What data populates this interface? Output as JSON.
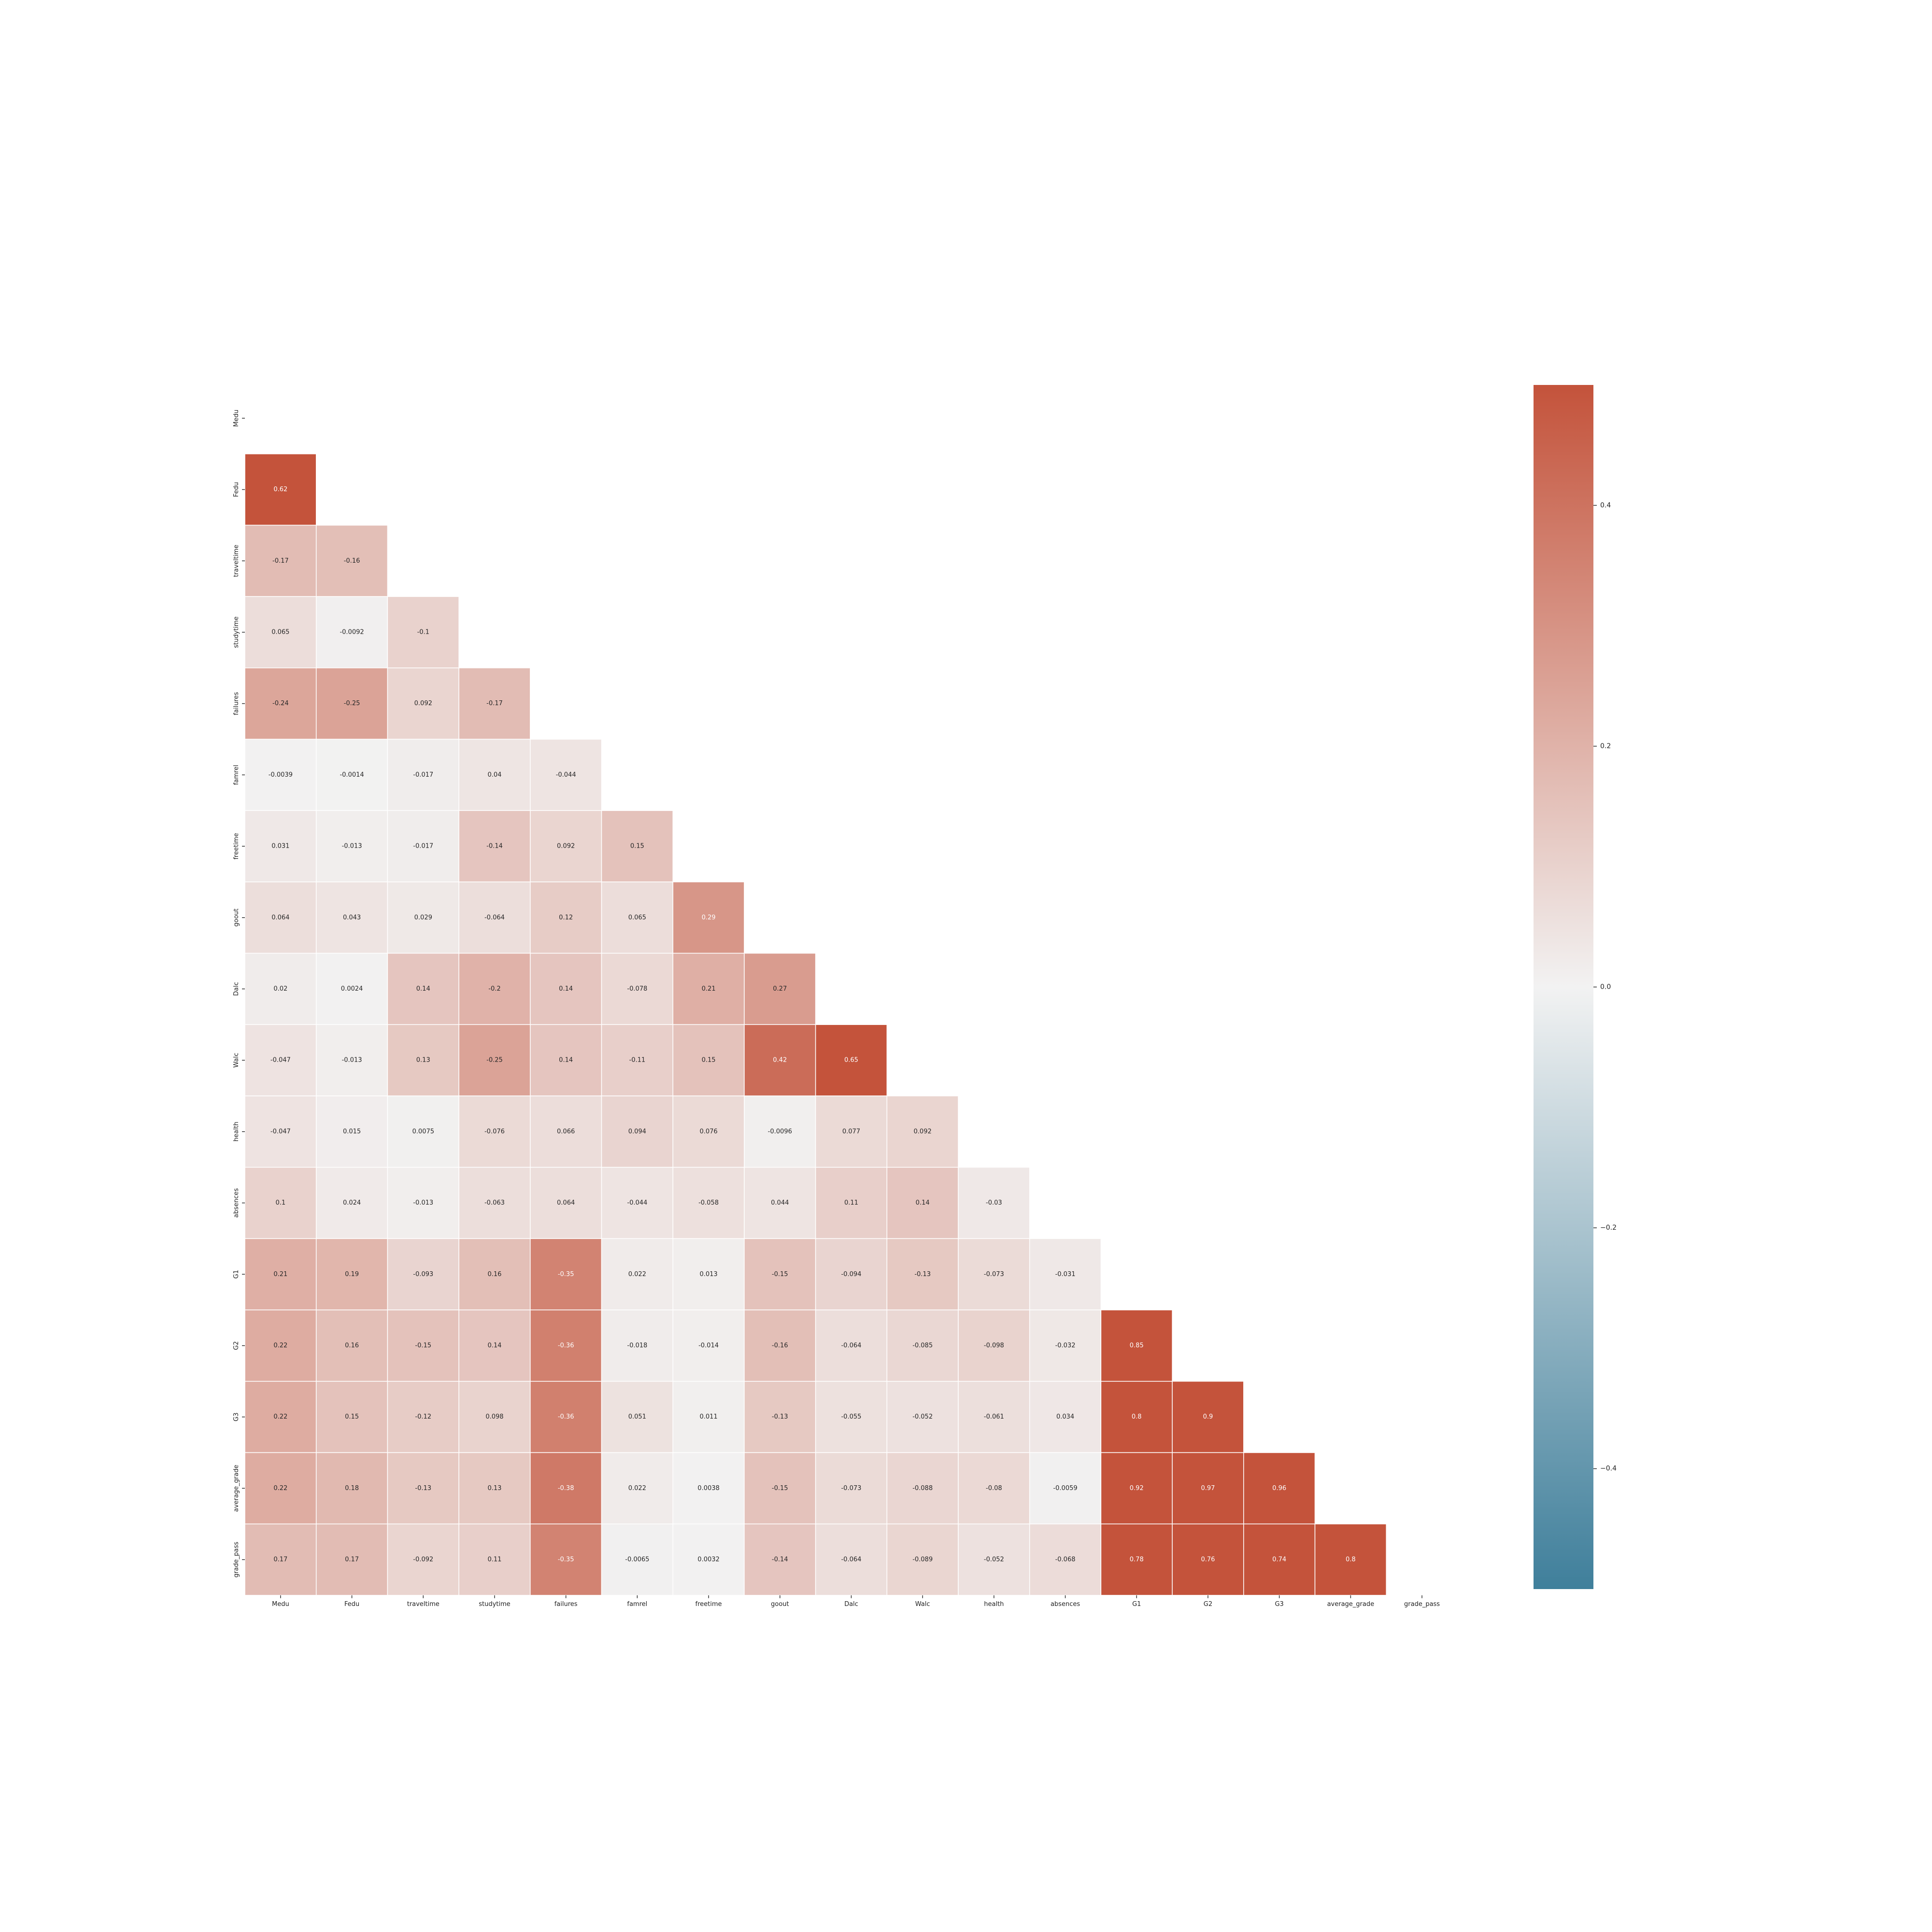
{
  "chart_data": {
    "type": "heatmap",
    "variables": [
      "Medu",
      "Fedu",
      "traveltime",
      "studytime",
      "failures",
      "famrel",
      "freetime",
      "goout",
      "Dalc",
      "Walc",
      "health",
      "absences",
      "G1",
      "G2",
      "G3",
      "average_grade",
      "grade_pass"
    ],
    "mask": "upper triangle and diagonal hidden",
    "annotations": true,
    "lower_triangle": [
      [],
      [
        "0.62"
      ],
      [
        "-0.17",
        "-0.16"
      ],
      [
        "0.065",
        "-0.0092",
        "-0.1"
      ],
      [
        "-0.24",
        "-0.25",
        "0.092",
        "-0.17"
      ],
      [
        "-0.0039",
        "-0.0014",
        "-0.017",
        "0.04",
        "-0.044"
      ],
      [
        "0.031",
        "-0.013",
        "-0.017",
        "-0.14",
        "0.092",
        "0.15"
      ],
      [
        "0.064",
        "0.043",
        "0.029",
        "-0.064",
        "0.12",
        "0.065",
        "0.29"
      ],
      [
        "0.02",
        "0.0024",
        "0.14",
        "-0.2",
        "0.14",
        "-0.078",
        "0.21",
        "0.27"
      ],
      [
        "-0.047",
        "-0.013",
        "0.13",
        "-0.25",
        "0.14",
        "-0.11",
        "0.15",
        "0.42",
        "0.65"
      ],
      [
        "-0.047",
        "0.015",
        "0.0075",
        "-0.076",
        "0.066",
        "0.094",
        "0.076",
        "-0.0096",
        "0.077",
        "0.092"
      ],
      [
        "0.1",
        "0.024",
        "-0.013",
        "-0.063",
        "0.064",
        "-0.044",
        "-0.058",
        "0.044",
        "0.11",
        "0.14",
        "-0.03"
      ],
      [
        "0.21",
        "0.19",
        "-0.093",
        "0.16",
        "-0.35",
        "0.022",
        "0.013",
        "-0.15",
        "-0.094",
        "-0.13",
        "-0.073",
        "-0.031"
      ],
      [
        "0.22",
        "0.16",
        "-0.15",
        "0.14",
        "-0.36",
        "-0.018",
        "-0.014",
        "-0.16",
        "-0.064",
        "-0.085",
        "-0.098",
        "-0.032",
        "0.85"
      ],
      [
        "0.22",
        "0.15",
        "-0.12",
        "0.098",
        "-0.36",
        "0.051",
        "0.011",
        "-0.13",
        "-0.055",
        "-0.052",
        "-0.061",
        "0.034",
        "0.8",
        "0.9"
      ],
      [
        "0.22",
        "0.18",
        "-0.13",
        "0.13",
        "-0.38",
        "0.022",
        "0.0038",
        "-0.15",
        "-0.073",
        "-0.088",
        "-0.08",
        "-0.0059",
        "0.92",
        "0.97",
        "0.96"
      ],
      [
        "0.17",
        "0.17",
        "-0.092",
        "0.11",
        "-0.35",
        "-0.0065",
        "0.0032",
        "-0.14",
        "-0.064",
        "-0.089",
        "-0.052",
        "-0.068",
        "0.78",
        "0.76",
        "0.74",
        "0.8"
      ]
    ],
    "colorbar": {
      "vmin": -0.5,
      "vmax": 0.5,
      "ticks": [
        "0.4",
        "0.2",
        "0.0",
        "−0.2",
        "−0.4"
      ],
      "tick_values": [
        0.4,
        0.2,
        0.0,
        -0.2,
        -0.4
      ],
      "colors": {
        "negative": "#3f7f9b",
        "center": "#f2f2f2",
        "positive": "#c4533b"
      }
    }
  }
}
